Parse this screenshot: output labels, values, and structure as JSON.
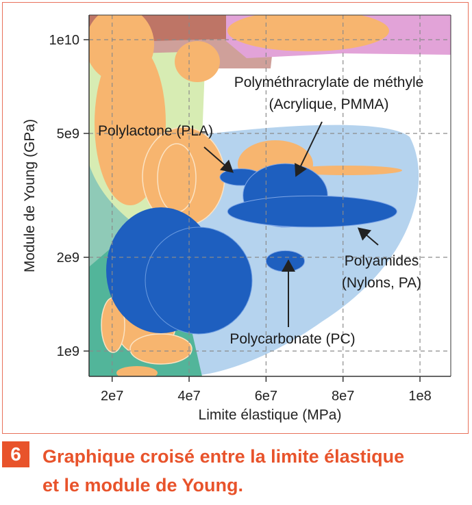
{
  "chart_data": {
    "type": "scatter",
    "title": "",
    "xlabel": "Limite élastique (MPa)",
    "ylabel": "Module de Young (GPa)",
    "x_ticks": [
      "2e7",
      "4e7",
      "6e7",
      "8e7",
      "1e8"
    ],
    "x_tick_values": [
      20000000,
      40000000,
      60000000,
      80000000,
      100000000
    ],
    "y_ticks": [
      "1e9",
      "2e9",
      "5e9",
      "1e10"
    ],
    "y_tick_values": [
      1000000000,
      2000000000,
      5000000000,
      10000000000
    ],
    "y_scale": "log",
    "grid": "dashed",
    "annotations": [
      {
        "lines": [
          "Polyméthracrylate de méthyle",
          "(Acrylique, PMMA)"
        ],
        "x": 62000000,
        "y": 3700000000
      },
      {
        "lines": [
          "Polylactone (PLA)"
        ],
        "x": 50000000,
        "y": 3600000000
      },
      {
        "lines": [
          "Polyamides",
          "(Nylons, PA)"
        ],
        "x": 74000000,
        "y": 2700000000
      },
      {
        "lines": [
          "Polycarbonate (PC)"
        ],
        "x": 65000000,
        "y": 1950000000
      }
    ],
    "highlighted_materials": [
      {
        "name": "PLA",
        "x": [
          48000000,
          59000000
        ],
        "y": [
          3400000000,
          3850000000
        ]
      },
      {
        "name": "PMMA",
        "x": [
          54000000,
          76000000
        ],
        "y": [
          2500000000,
          4000000000
        ]
      },
      {
        "name": "PA",
        "x": [
          50000000,
          94000000
        ],
        "y": [
          2500000000,
          3150000000
        ]
      },
      {
        "name": "PC",
        "x": [
          60000000,
          70000000
        ],
        "y": [
          1800000000,
          2100000000
        ]
      }
    ],
    "colors": {
      "highlight": "#1e5fbf",
      "polymer_zone": "#b5d3ee",
      "orange_materials": "#f7b56f",
      "green_zone": "#52b59a",
      "light_green_zone": "#d7ecb3",
      "brown_zone": "#be7566",
      "pink_zone": "#e2a3d8"
    }
  },
  "caption": {
    "number": "6",
    "line1": "Graphique croisé entre la limite élastique",
    "line2": "et le module de Young."
  }
}
